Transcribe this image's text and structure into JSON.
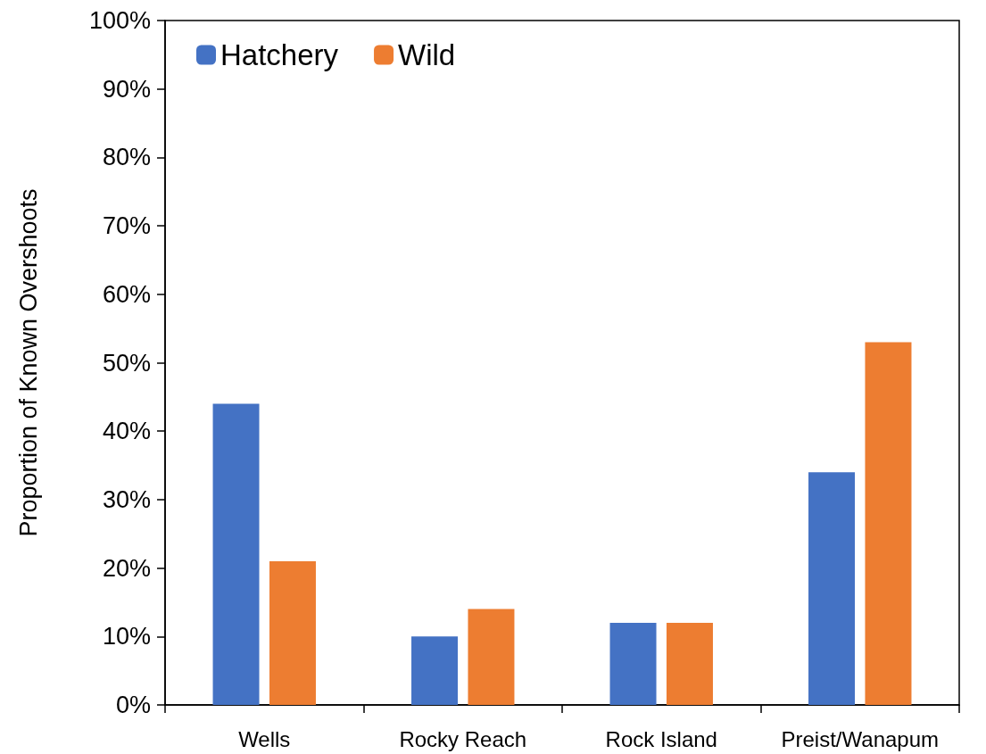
{
  "chart_data": {
    "type": "bar",
    "ylabel": "Proportion of Known Overshoots",
    "categories": [
      "Wells",
      "Rocky Reach",
      "Rock Island",
      "Preist/Wanapum"
    ],
    "series": [
      {
        "name": "Hatchery",
        "color": "#4472c4",
        "values": [
          44,
          10,
          12,
          34
        ]
      },
      {
        "name": "Wild",
        "color": "#ed7d31",
        "values": [
          21,
          14,
          12,
          53
        ]
      }
    ],
    "ylim": [
      0,
      100
    ],
    "yticks": [
      {
        "value": 0,
        "label": "0%"
      },
      {
        "value": 10,
        "label": "10%"
      },
      {
        "value": 20,
        "label": "20%"
      },
      {
        "value": 30,
        "label": "30%"
      },
      {
        "value": 40,
        "label": "40%"
      },
      {
        "value": 50,
        "label": "50%"
      },
      {
        "value": 60,
        "label": "60%"
      },
      {
        "value": 70,
        "label": "70%"
      },
      {
        "value": 80,
        "label": "80%"
      },
      {
        "value": 90,
        "label": "90%"
      },
      {
        "value": 100,
        "label": "100%"
      }
    ],
    "grid": false,
    "legend": "top left"
  }
}
